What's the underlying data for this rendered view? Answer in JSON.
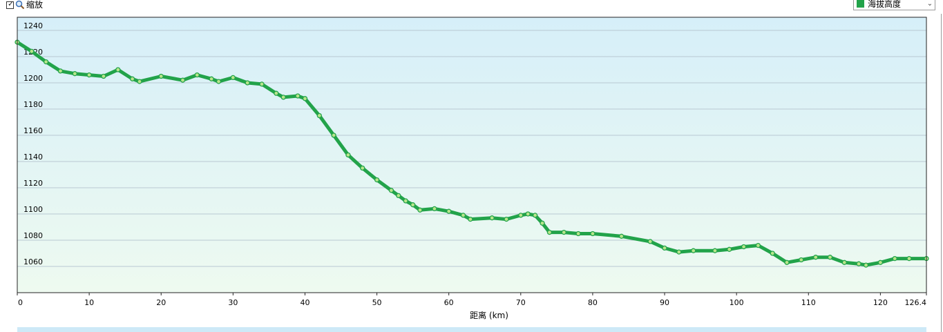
{
  "toolbar": {
    "zoom_checked": true,
    "zoom_label": "缩放",
    "checkmark_glyph": "✓",
    "zoom_icon": "magnifier-icon"
  },
  "series_selector": {
    "selected": "海拔高度",
    "swatch_color": "#22a34a",
    "options": [
      "海拔高度"
    ]
  },
  "colors": {
    "line": "#22a34a",
    "marker_fill": "#b8e68c",
    "plot_bg_top": "#d6eff9",
    "plot_bg_bottom": "#eefaf0"
  },
  "chart_data": {
    "type": "line",
    "xlabel": "距离 (km)",
    "ylabel": "",
    "xlim": [
      0,
      126.4
    ],
    "ylim": [
      1040,
      1250
    ],
    "x_ticks": [
      0,
      10,
      20,
      30,
      40,
      50,
      60,
      70,
      80,
      90,
      100,
      110,
      120,
      126.4
    ],
    "y_ticks": [
      1060,
      1080,
      1100,
      1120,
      1140,
      1160,
      1180,
      1200,
      1220,
      1240
    ],
    "grid": true,
    "legend": "top-right selector",
    "series": [
      {
        "name": "海拔高度",
        "x": [
          0,
          2,
          4,
          6,
          8,
          10,
          12,
          14,
          16,
          17,
          20,
          23,
          25,
          27,
          28,
          30,
          32,
          34,
          36,
          37,
          39,
          40,
          42,
          44,
          46,
          48,
          50,
          52,
          53,
          54,
          55,
          56,
          58,
          60,
          62,
          63,
          66,
          68,
          70,
          71,
          72,
          73,
          74,
          76,
          78,
          80,
          84,
          88,
          90,
          92,
          94,
          97,
          99,
          101,
          103,
          105,
          107,
          109,
          111,
          113,
          115,
          117,
          118,
          120,
          122,
          124,
          126.4
        ],
        "y": [
          1231,
          1224,
          1216,
          1209,
          1207,
          1206,
          1205,
          1210,
          1203,
          1201,
          1205,
          1202,
          1206,
          1203,
          1201,
          1204,
          1200,
          1199,
          1192,
          1189,
          1190,
          1188,
          1175,
          1160,
          1145,
          1135,
          1126,
          1118,
          1114,
          1110,
          1107,
          1103,
          1104,
          1102,
          1099,
          1096,
          1097,
          1096,
          1099,
          1100,
          1099,
          1093,
          1086,
          1086,
          1085,
          1085,
          1083,
          1079,
          1074,
          1071,
          1072,
          1072,
          1073,
          1075,
          1076,
          1070,
          1063,
          1065,
          1067,
          1067,
          1063,
          1062,
          1061,
          1063,
          1066,
          1066,
          1066
        ]
      }
    ]
  }
}
